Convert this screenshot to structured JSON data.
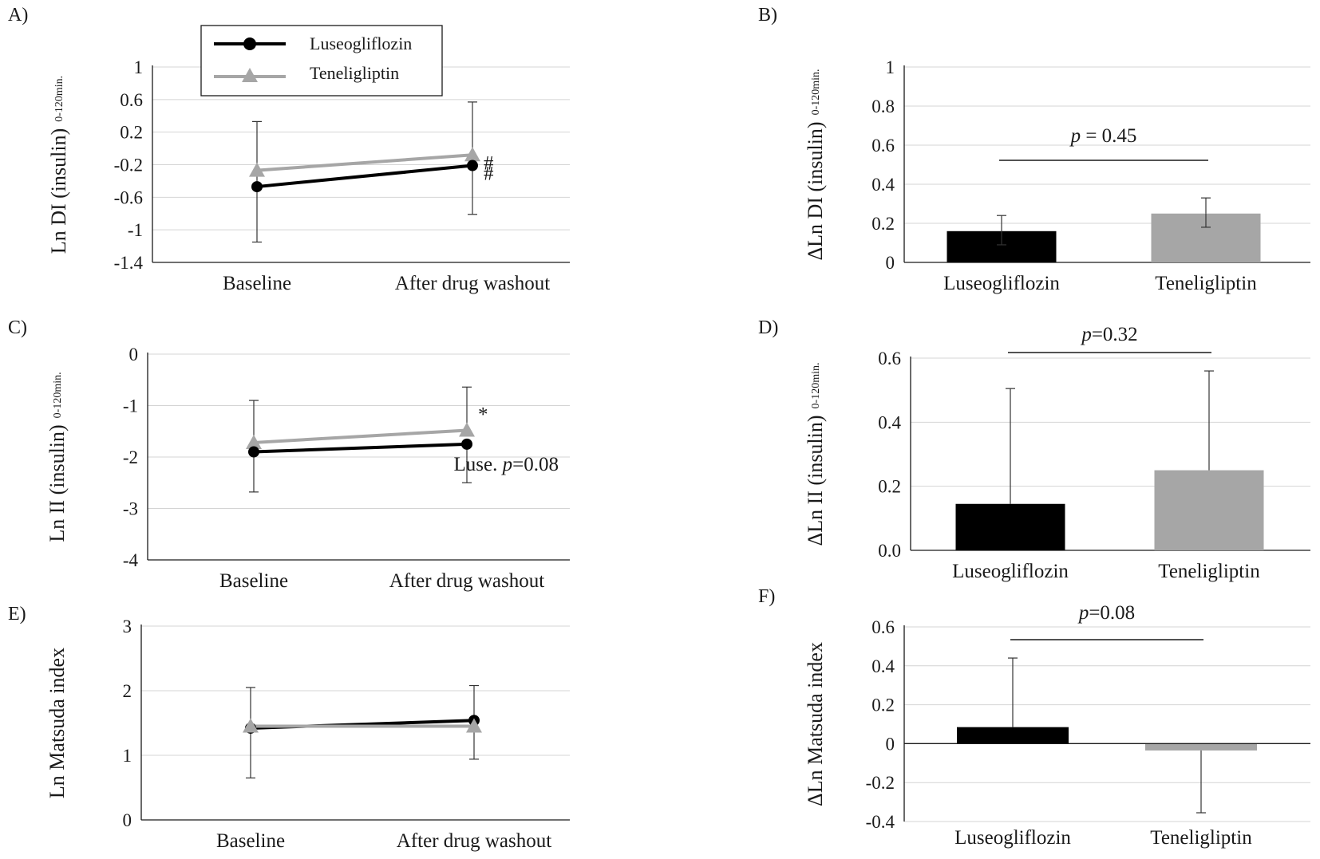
{
  "colors": {
    "luseogliflozin": "#000000",
    "teneligliptin": "#a6a6a6",
    "grid": "#d4d4d4"
  },
  "legend": {
    "luseogliflozin": "Luseogliflozin",
    "teneligliptin": "Teneligliptin"
  },
  "chart_data": [
    {
      "panel": "A)",
      "type": "line",
      "ylabel_main": "Ln DI (insulin)",
      "ylabel_sub": "0-120min.",
      "ylim": [
        -1.4,
        1
      ],
      "yticks": [
        1,
        0.6,
        0.2,
        -0.2,
        -0.6,
        -1,
        -1.4
      ],
      "ytick_labels": [
        "1",
        "0.6",
        "0.2",
        "-0.2",
        "-0.6",
        "-1",
        "-1.4"
      ],
      "categories": [
        "Baseline",
        "After drug washout"
      ],
      "series": [
        {
          "name": "Luseogliflozin",
          "values": [
            -0.47,
            -0.21
          ],
          "err_lo": [
            -1.15,
            -0.81
          ],
          "err_hi": [
            0.33,
            0.57
          ],
          "marker": "circle"
        },
        {
          "name": "Teneligliptin",
          "values": [
            -0.27,
            -0.08
          ],
          "marker": "triangle"
        }
      ],
      "annotations": [
        {
          "text": "#",
          "series": 1,
          "point": 1
        },
        {
          "text": "#",
          "series": 0,
          "point": 1
        }
      ]
    },
    {
      "panel": "B)",
      "type": "bar",
      "ylabel_main": "ΔLn DI (insulin)",
      "ylabel_sub": "0-120min.",
      "ylim": [
        0,
        1
      ],
      "yticks": [
        1,
        0.8,
        0.6,
        0.4,
        0.2,
        0
      ],
      "ytick_labels": [
        "1",
        "0.8",
        "0.6",
        "0.4",
        "0.2",
        "0"
      ],
      "categories": [
        "Luseogliflozin",
        "Teneligliptin"
      ],
      "values": [
        0.16,
        0.25
      ],
      "err_lo": [
        0.09,
        0.18
      ],
      "err_hi": [
        0.24,
        0.33
      ],
      "pvalue": {
        "italic": "p",
        "rest": " = 0.45",
        "y": 0.53
      }
    },
    {
      "panel": "C)",
      "type": "line",
      "ylabel_main": "Ln II (insulin)",
      "ylabel_sub": "0-120min.",
      "ylim": [
        -4,
        0
      ],
      "yticks": [
        0,
        -1,
        -2,
        -3,
        -4
      ],
      "ytick_labels": [
        "0",
        "-1",
        "-2",
        "-3",
        "-4"
      ],
      "categories": [
        "Baseline",
        "After drug washout"
      ],
      "series": [
        {
          "name": "Luseogliflozin",
          "values": [
            -1.9,
            -1.75
          ],
          "err_lo": [
            -2.68,
            -2.5
          ],
          "marker": "circle"
        },
        {
          "name": "Teneligliptin",
          "values": [
            -1.72,
            -1.48
          ],
          "err_hi": [
            -0.9,
            -0.64
          ],
          "marker": "triangle"
        }
      ],
      "annotations": [
        {
          "text": "*",
          "series": 1,
          "point": 1
        },
        {
          "text_pre": "Luse. ",
          "italic": "p",
          "text_post": "=0.08"
        }
      ]
    },
    {
      "panel": "D)",
      "type": "bar",
      "ylabel_main": "ΔLn II (insulin)",
      "ylabel_sub": "0-120min.",
      "ylim": [
        0,
        0.6
      ],
      "yticks": [
        0.6,
        0.4,
        0.2,
        0
      ],
      "ytick_labels": [
        "0.6",
        "0.4",
        "0.2",
        "0.0"
      ],
      "categories": [
        "Luseogliflozin",
        "Teneligliptin"
      ],
      "values": [
        0.145,
        0.25
      ],
      "err_hi": [
        0.505,
        0.56
      ],
      "pvalue": {
        "italic": "p",
        "rest": "=0.32"
      }
    },
    {
      "panel": "E)",
      "type": "line",
      "ylabel_main": "Ln Matsuda index",
      "ylim": [
        0,
        3
      ],
      "yticks": [
        3,
        2,
        1,
        0
      ],
      "ytick_labels": [
        "3",
        "2",
        "1",
        "0"
      ],
      "categories": [
        "Baseline",
        "After drug washout"
      ],
      "series": [
        {
          "name": "Luseogliflozin",
          "values": [
            1.42,
            1.54
          ],
          "err_lo": [
            0.65,
            0.94
          ],
          "err_hi": [
            2.05,
            2.08
          ],
          "marker": "circle"
        },
        {
          "name": "Teneligliptin",
          "values": [
            1.45,
            1.45
          ],
          "marker": "triangle"
        }
      ]
    },
    {
      "panel": "F)",
      "type": "bar",
      "ylabel_main": "ΔLn Matsuda index",
      "ylim": [
        -0.4,
        0.6
      ],
      "yticks": [
        0.6,
        0.4,
        0.2,
        0,
        -0.2,
        -0.4
      ],
      "ytick_labels": [
        "0.6",
        "0.4",
        "0.2",
        "0",
        "-0.2",
        "-0.4"
      ],
      "categories": [
        "Luseogliflozin",
        "Teneligliptin"
      ],
      "values": [
        0.085,
        -0.035
      ],
      "err_hi": [
        0.44,
        null
      ],
      "err_lo": [
        null,
        -0.355
      ],
      "pvalue": {
        "italic": "p",
        "rest": "=0.08"
      }
    }
  ]
}
